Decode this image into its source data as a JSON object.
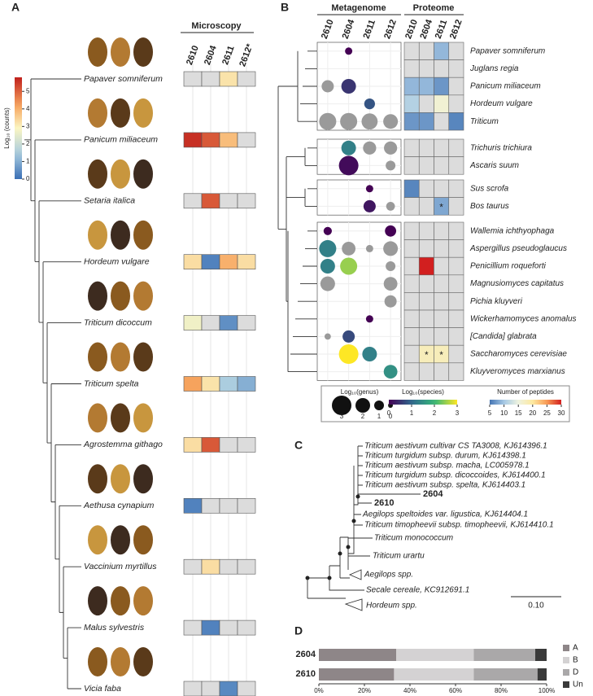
{
  "panel_a": {
    "label": "A",
    "header": "Microscopy",
    "colorbar": {
      "title": "Log₁₀ (counts)",
      "range": [
        0,
        5.8
      ],
      "ticks": [
        0,
        1,
        2,
        3,
        4,
        5
      ]
    },
    "samples": [
      {
        "name": "2610",
        "color": "#a8368f"
      },
      {
        "name": "2604",
        "color": "#5fa433"
      },
      {
        "name": "2611",
        "color": "#2f8a4a"
      },
      {
        "name": "2612*",
        "color": "#3fb6d8"
      }
    ],
    "rows": [
      {
        "taxon": "Papaver somniferum",
        "values": [
          null,
          null,
          3.2,
          null
        ]
      },
      {
        "taxon": "Panicum miliaceum",
        "values": [
          5.6,
          5.1,
          3.8,
          null
        ]
      },
      {
        "taxon": "Setaria italica",
        "values": [
          null,
          5.1,
          null,
          null
        ]
      },
      {
        "taxon": "Hordeum vulgare",
        "values": [
          3.3,
          0.3,
          4,
          3.3
        ]
      },
      {
        "taxon": "Triticum dicoccum",
        "values": [
          2.7,
          null,
          0.5,
          null
        ]
      },
      {
        "taxon": "Triticum spelta",
        "values": [
          4.2,
          3.2,
          1.5,
          1
        ]
      },
      {
        "taxon": "Agrostemma githago",
        "values": [
          3.3,
          5.1,
          null,
          null
        ]
      },
      {
        "taxon": "Aethusa cynapium",
        "values": [
          0.3,
          null,
          null,
          null
        ]
      },
      {
        "taxon": "Vaccinium myrtillus",
        "values": [
          null,
          3.3,
          null,
          null
        ]
      },
      {
        "taxon": "Malus sylvestris",
        "values": [
          null,
          0.3,
          null,
          null
        ]
      },
      {
        "taxon": "Vicia faba",
        "values": [
          null,
          null,
          0.4,
          null
        ]
      }
    ]
  },
  "panel_b": {
    "label": "B",
    "metagenome_header": "Metagenome",
    "proteome_header": "Proteome",
    "samples": [
      {
        "name": "2610",
        "color": "#a8368f"
      },
      {
        "name": "2604",
        "color": "#5fa433"
      },
      {
        "name": "2611",
        "color": "#2f8a4a"
      },
      {
        "name": "2612",
        "color": "#3fb6d8"
      }
    ],
    "groups": [
      {
        "rows": [
          {
            "taxon": "Papaver somniferum",
            "genus": [
              null,
              0.5,
              null,
              null
            ],
            "species": [
              null,
              0,
              null,
              null
            ],
            "peptides": [
              null,
              null,
              9,
              null
            ]
          },
          {
            "taxon": "Juglans regia",
            "genus": [
              null,
              null,
              null,
              null
            ],
            "species": [
              null,
              null,
              null,
              null
            ],
            "peptides": [
              null,
              null,
              null,
              null
            ]
          },
          {
            "taxon": "Panicum miliaceum",
            "genus": [
              1.5,
              2,
              null,
              null
            ],
            "species": [
              null,
              0.5,
              null,
              null
            ],
            "peptides": [
              9,
              9,
              7,
              null
            ]
          },
          {
            "taxon": "Hordeum vulgare",
            "genus": [
              null,
              null,
              1.2,
              null
            ],
            "species": [
              null,
              null,
              0.8,
              null
            ],
            "peptides": [
              11,
              null,
              16,
              null
            ]
          },
          {
            "taxon": "Triticum",
            "genus": [
              2.5,
              2.5,
              2.3,
              2
            ],
            "species": [
              null,
              null,
              null,
              null
            ],
            "peptides": [
              7,
              7,
              null,
              6
            ]
          }
        ]
      },
      {
        "rows": [
          {
            "taxon": "Trichuris trichiura",
            "genus": [
              null,
              2,
              1.7,
              1.7
            ],
            "species": [
              null,
              1.3,
              null,
              null
            ],
            "peptides": [
              null,
              null,
              null,
              null
            ]
          },
          {
            "taxon": "Ascaris suum",
            "genus": [
              null,
              3,
              null,
              1
            ],
            "species": [
              null,
              0.1,
              null,
              null
            ],
            "peptides": [
              null,
              null,
              null,
              null
            ]
          }
        ]
      },
      {
        "rows": [
          {
            "taxon": "Sus scrofa",
            "genus": [
              null,
              null,
              0.5,
              null
            ],
            "species": [
              null,
              null,
              0,
              null
            ],
            "peptides": [
              6,
              null,
              null,
              null
            ]
          },
          {
            "taxon": "Bos taurus",
            "genus": [
              null,
              null,
              1.5,
              0.8
            ],
            "species": [
              null,
              null,
              0.2,
              null
            ],
            "peptides": [
              null,
              null,
              8,
              null
            ],
            "notes": [
              null,
              null,
              "*",
              null
            ]
          }
        ]
      },
      {
        "rows": [
          {
            "taxon": "Wallemia ichthyophaga",
            "genus": [
              0.7,
              null,
              null,
              1.3
            ],
            "species": [
              0,
              null,
              null,
              0
            ],
            "peptides": [
              null,
              null,
              null,
              null
            ]
          },
          {
            "taxon": "Aspergillus pseudoglaucus",
            "genus": [
              2.5,
              1.8,
              0.5,
              2
            ],
            "species": [
              1.3,
              null,
              null,
              null
            ],
            "peptides": [
              null,
              null,
              null,
              null
            ]
          },
          {
            "taxon": "Penicillium roqueforti",
            "genus": [
              2,
              2.5,
              null,
              1
            ],
            "species": [
              1.3,
              2.5,
              null,
              null
            ],
            "peptides": [
              null,
              30,
              null,
              null
            ]
          },
          {
            "taxon": "Magnusiomyces capitatus",
            "genus": [
              2,
              null,
              null,
              1.8
            ],
            "species": [
              null,
              null,
              null,
              null
            ],
            "peptides": [
              null,
              null,
              null,
              null
            ]
          },
          {
            "taxon": "Pichia kluyveri",
            "genus": [
              null,
              null,
              null,
              1.5
            ],
            "species": [
              null,
              null,
              null,
              null
            ],
            "peptides": [
              null,
              null,
              null,
              null
            ]
          },
          {
            "taxon": "Wickerhamomyces anomalus",
            "genus": [
              null,
              null,
              0.5,
              null
            ],
            "species": [
              null,
              null,
              0,
              null
            ],
            "peptides": [
              null,
              null,
              null,
              null
            ]
          },
          {
            "taxon": "[Candida] glabrata",
            "genus": [
              0.3,
              1.5,
              null,
              null
            ],
            "species": [
              null,
              0.7,
              null,
              null
            ],
            "peptides": [
              null,
              null,
              null,
              null
            ]
          },
          {
            "taxon": "Saccharomyces cerevisiae",
            "genus": [
              null,
              3,
              2,
              null
            ],
            "species": [
              null,
              3,
              1.3,
              null
            ],
            "peptides": [
              null,
              18,
              18,
              null
            ],
            "notes": [
              null,
              "*",
              "*",
              null
            ]
          },
          {
            "taxon": "Kluyveromyces marxianus",
            "genus": [
              null,
              null,
              null,
              1.8
            ],
            "species": [
              null,
              null,
              null,
              1.5
            ],
            "peptides": [
              null,
              null,
              null,
              null
            ]
          }
        ]
      }
    ],
    "legend": {
      "genus_title": "Log₁₀(genus)",
      "genus_sizes": [
        3,
        2,
        1,
        0
      ],
      "species_title": "Log₁₀(species)",
      "species_range": [
        0,
        3
      ],
      "species_ticks": [
        0,
        1,
        2,
        3
      ],
      "peptides_title": "Number of peptides",
      "peptides_range": [
        5,
        30
      ],
      "peptides_ticks": [
        5,
        10,
        15,
        20,
        25,
        30
      ]
    }
  },
  "panel_c": {
    "label": "C",
    "scale": "0.10",
    "leaves": [
      {
        "text": "Triticum aestivum cultivar CS TA3008, KJ614396.1"
      },
      {
        "text": "Triticum turgidum subsp. durum, KJ614398.1"
      },
      {
        "text": "Triticum aestivum subsp. macha, LC005978.1"
      },
      {
        "text": "Triticum turgidum subsp. dicoccoides, KJ614400.1"
      },
      {
        "text": "Triticum aestivum subsp. spelta, KJ614403.1"
      },
      {
        "text": "2604",
        "color": "#5fa433"
      },
      {
        "text": "2610",
        "color": "#a8368f"
      },
      {
        "text": "Aegilops speltoides var. ligustica, KJ614404.1"
      },
      {
        "text": "Triticum timopheevii subsp. timopheevii, KJ614410.1"
      },
      {
        "text": "Triticum monococcum"
      },
      {
        "text": "Triticum urartu"
      },
      {
        "text": "Aegilops spp."
      },
      {
        "text": "Secale cereale, KC912691.1"
      },
      {
        "text": "Hordeum spp."
      }
    ]
  },
  "panel_d": {
    "label": "D",
    "chart_data": {
      "type": "bar",
      "orientation": "horizontal",
      "stacked": true,
      "categories": [
        "2604",
        "2610"
      ],
      "category_colors": [
        "#5fa433",
        "#a8368f"
      ],
      "series": [
        {
          "name": "A",
          "color": "#8e8688",
          "values": [
            34,
            33
          ]
        },
        {
          "name": "B",
          "color": "#d4d2d3",
          "values": [
            34,
            35
          ]
        },
        {
          "name": "D",
          "color": "#aaa8a9",
          "values": [
            27,
            28
          ]
        },
        {
          "name": "Un",
          "color": "#3a3a3a",
          "values": [
            5,
            4
          ]
        }
      ],
      "xlim": [
        0,
        100
      ],
      "xticks": [
        {
          "value": 0,
          "label": "0%"
        },
        {
          "value": 20,
          "label": "20%"
        },
        {
          "value": 40,
          "label": "40%"
        },
        {
          "value": 60,
          "label": "60%"
        },
        {
          "value": 80,
          "label": "80%"
        },
        {
          "value": 100,
          "label": "100%"
        }
      ]
    }
  }
}
